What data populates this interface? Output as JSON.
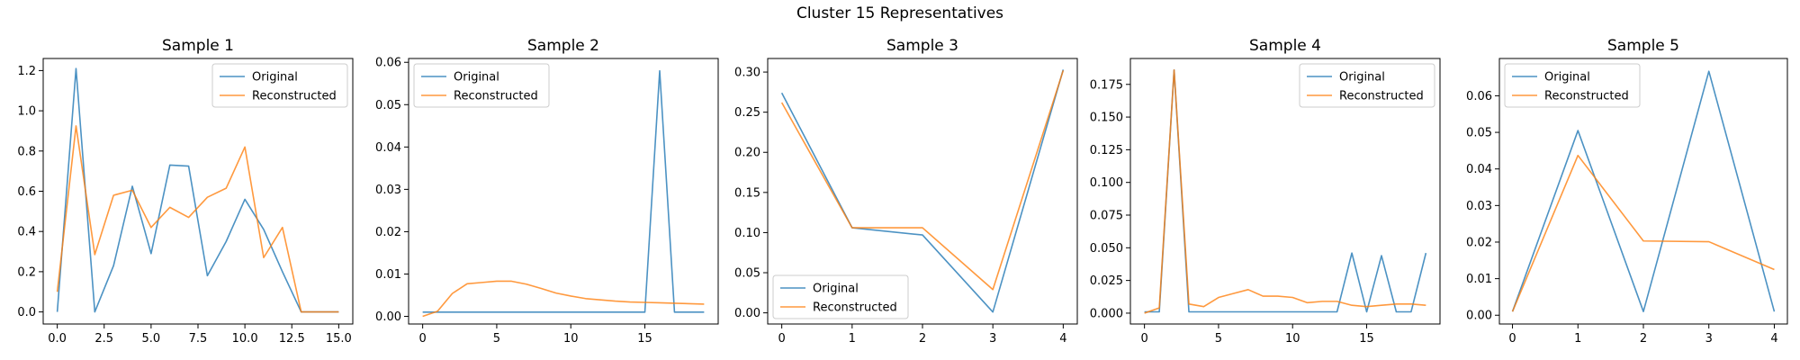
{
  "suptitle": "Cluster 15 Representatives",
  "colors": {
    "original": "#1f77b4",
    "reconstructed": "#ff7f0e"
  },
  "chart_data": [
    {
      "type": "line",
      "title": "Sample 1",
      "xticks": [
        "0.0",
        "2.5",
        "5.0",
        "7.5",
        "10.0",
        "12.5",
        "15.0"
      ],
      "yticks": [
        "0.0",
        "0.2",
        "0.4",
        "0.6",
        "0.8",
        "1.0",
        "1.2"
      ],
      "xlim": [
        -0.75,
        15.75
      ],
      "ylim": [
        -0.06,
        1.26
      ],
      "legend": "upper right",
      "series": [
        {
          "name": "Original",
          "x": [
            0,
            1,
            2,
            3,
            4,
            5,
            6,
            7,
            8,
            9,
            10,
            11,
            12,
            13,
            14,
            15
          ],
          "values": [
            0.0,
            1.21,
            0.0,
            0.23,
            0.625,
            0.29,
            0.73,
            0.725,
            0.18,
            0.35,
            0.56,
            0.41,
            0.2,
            0.0,
            0.0,
            0.0
          ]
        },
        {
          "name": "Reconstructed",
          "x": [
            0,
            1,
            2,
            3,
            4,
            5,
            6,
            7,
            8,
            9,
            10,
            11,
            12,
            13,
            14,
            15
          ],
          "values": [
            0.1,
            0.925,
            0.285,
            0.58,
            0.605,
            0.42,
            0.52,
            0.47,
            0.57,
            0.615,
            0.82,
            0.27,
            0.42,
            0.0,
            0.0,
            0.0
          ]
        }
      ]
    },
    {
      "type": "line",
      "title": "Sample 2",
      "xticks": [
        "0",
        "5",
        "10",
        "15"
      ],
      "yticks": [
        "0.00",
        "0.01",
        "0.02",
        "0.03",
        "0.04",
        "0.05",
        "0.06"
      ],
      "xlim": [
        -0.95,
        19.95
      ],
      "ylim": [
        -0.0018,
        0.0609
      ],
      "legend": "upper left",
      "series": [
        {
          "name": "Original",
          "x": [
            0,
            1,
            2,
            3,
            4,
            5,
            6,
            7,
            8,
            9,
            10,
            11,
            12,
            13,
            14,
            15,
            16,
            17,
            18,
            19
          ],
          "values": [
            0.001,
            0.001,
            0.001,
            0.001,
            0.001,
            0.001,
            0.001,
            0.001,
            0.001,
            0.001,
            0.001,
            0.001,
            0.001,
            0.001,
            0.001,
            0.001,
            0.058,
            0.001,
            0.001,
            0.001
          ]
        },
        {
          "name": "Reconstructed",
          "x": [
            0,
            1,
            2,
            3,
            4,
            5,
            6,
            7,
            8,
            9,
            10,
            11,
            12,
            13,
            14,
            15,
            16,
            17,
            18,
            19
          ],
          "values": [
            0.0,
            0.0012,
            0.0054,
            0.0077,
            0.008,
            0.0083,
            0.0083,
            0.0076,
            0.0066,
            0.0055,
            0.0048,
            0.0042,
            0.0039,
            0.0036,
            0.0034,
            0.0033,
            0.0032,
            0.0031,
            0.003,
            0.0029
          ]
        }
      ]
    },
    {
      "type": "line",
      "title": "Sample 3",
      "xticks": [
        "0",
        "1",
        "2",
        "3",
        "4"
      ],
      "yticks": [
        "0.00",
        "0.05",
        "0.10",
        "0.15",
        "0.20",
        "0.25",
        "0.30"
      ],
      "xlim": [
        -0.2,
        4.2
      ],
      "ylim": [
        -0.0139,
        0.3169
      ],
      "legend": "lower left",
      "series": [
        {
          "name": "Original",
          "x": [
            0,
            1,
            2,
            3,
            4
          ],
          "values": [
            0.274,
            0.106,
            0.097,
            0.001,
            0.303
          ]
        },
        {
          "name": "Reconstructed",
          "x": [
            0,
            1,
            2,
            3,
            4
          ],
          "values": [
            0.262,
            0.106,
            0.106,
            0.029,
            0.302
          ]
        }
      ]
    },
    {
      "type": "line",
      "title": "Sample 4",
      "xticks": [
        "0",
        "5",
        "10",
        "15"
      ],
      "yticks": [
        "0.000",
        "0.025",
        "0.050",
        "0.075",
        "0.100",
        "0.125",
        "0.150",
        "0.175"
      ],
      "xlim": [
        -0.95,
        19.95
      ],
      "ylim": [
        -0.0083,
        0.1948
      ],
      "legend": "upper right",
      "series": [
        {
          "name": "Original",
          "x": [
            0,
            1,
            2,
            3,
            4,
            5,
            6,
            7,
            8,
            9,
            10,
            11,
            12,
            13,
            14,
            15,
            16,
            17,
            18,
            19
          ],
          "values": [
            0.001,
            0.001,
            0.186,
            0.001,
            0.001,
            0.001,
            0.001,
            0.001,
            0.001,
            0.001,
            0.001,
            0.001,
            0.001,
            0.001,
            0.046,
            0.001,
            0.044,
            0.001,
            0.001,
            0.046
          ]
        },
        {
          "name": "Reconstructed",
          "x": [
            0,
            1,
            2,
            3,
            4,
            5,
            6,
            7,
            8,
            9,
            10,
            11,
            12,
            13,
            14,
            15,
            16,
            17,
            18,
            19
          ],
          "values": [
            0.0,
            0.004,
            0.186,
            0.007,
            0.005,
            0.012,
            0.015,
            0.018,
            0.013,
            0.013,
            0.012,
            0.008,
            0.009,
            0.009,
            0.006,
            0.005,
            0.006,
            0.007,
            0.007,
            0.006
          ]
        }
      ]
    },
    {
      "type": "line",
      "title": "Sample 5",
      "xticks": [
        "0",
        "1",
        "2",
        "3",
        "4"
      ],
      "yticks": [
        "0.00",
        "0.01",
        "0.02",
        "0.03",
        "0.04",
        "0.05",
        "0.06"
      ],
      "xlim": [
        -0.2,
        4.2
      ],
      "ylim": [
        -0.0024,
        0.0702
      ],
      "legend": "upper left",
      "series": [
        {
          "name": "Original",
          "x": [
            0,
            1,
            2,
            3,
            4
          ],
          "values": [
            0.001,
            0.0505,
            0.001,
            0.0667,
            0.001
          ]
        },
        {
          "name": "Reconstructed",
          "x": [
            0,
            1,
            2,
            3,
            4
          ],
          "values": [
            0.001,
            0.0437,
            0.0203,
            0.0201,
            0.0125
          ]
        }
      ]
    }
  ]
}
